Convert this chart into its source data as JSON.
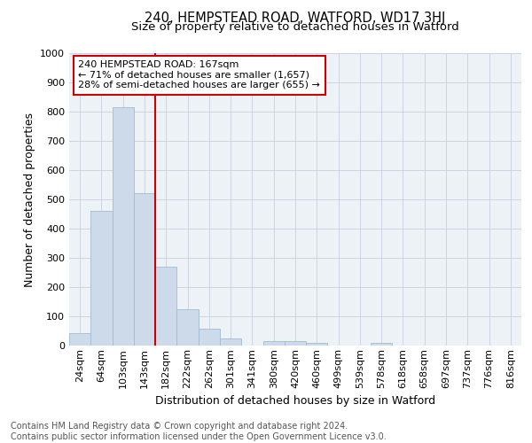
{
  "title": "240, HEMPSTEAD ROAD, WATFORD, WD17 3HJ",
  "subtitle": "Size of property relative to detached houses in Watford",
  "xlabel": "Distribution of detached houses by size in Watford",
  "ylabel": "Number of detached properties",
  "categories": [
    "24sqm",
    "64sqm",
    "103sqm",
    "143sqm",
    "182sqm",
    "222sqm",
    "262sqm",
    "301sqm",
    "341sqm",
    "380sqm",
    "420sqm",
    "460sqm",
    "499sqm",
    "539sqm",
    "578sqm",
    "618sqm",
    "658sqm",
    "697sqm",
    "737sqm",
    "776sqm",
    "816sqm"
  ],
  "values": [
    42,
    460,
    815,
    520,
    270,
    125,
    58,
    25,
    0,
    15,
    15,
    10,
    0,
    0,
    8,
    0,
    0,
    0,
    0,
    0,
    0
  ],
  "bar_color": "#ccdaea",
  "bar_edge_color": "#a0bcd4",
  "property_line_x": 3.5,
  "property_line_color": "#cc0000",
  "annotation_text": "240 HEMPSTEAD ROAD: 167sqm\n← 71% of detached houses are smaller (1,657)\n28% of semi-detached houses are larger (655) →",
  "annotation_box_color": "#ffffff",
  "annotation_box_edge_color": "#cc0000",
  "ylim": [
    0,
    1000
  ],
  "yticks": [
    0,
    100,
    200,
    300,
    400,
    500,
    600,
    700,
    800,
    900,
    1000
  ],
  "grid_color": "#c8d0dc",
  "background_color": "#edf2f7",
  "footer_text": "Contains HM Land Registry data © Crown copyright and database right 2024.\nContains public sector information licensed under the Open Government Licence v3.0.",
  "title_fontsize": 10.5,
  "subtitle_fontsize": 9.5,
  "axis_label_fontsize": 9,
  "tick_fontsize": 8,
  "annotation_fontsize": 8,
  "footer_fontsize": 7
}
